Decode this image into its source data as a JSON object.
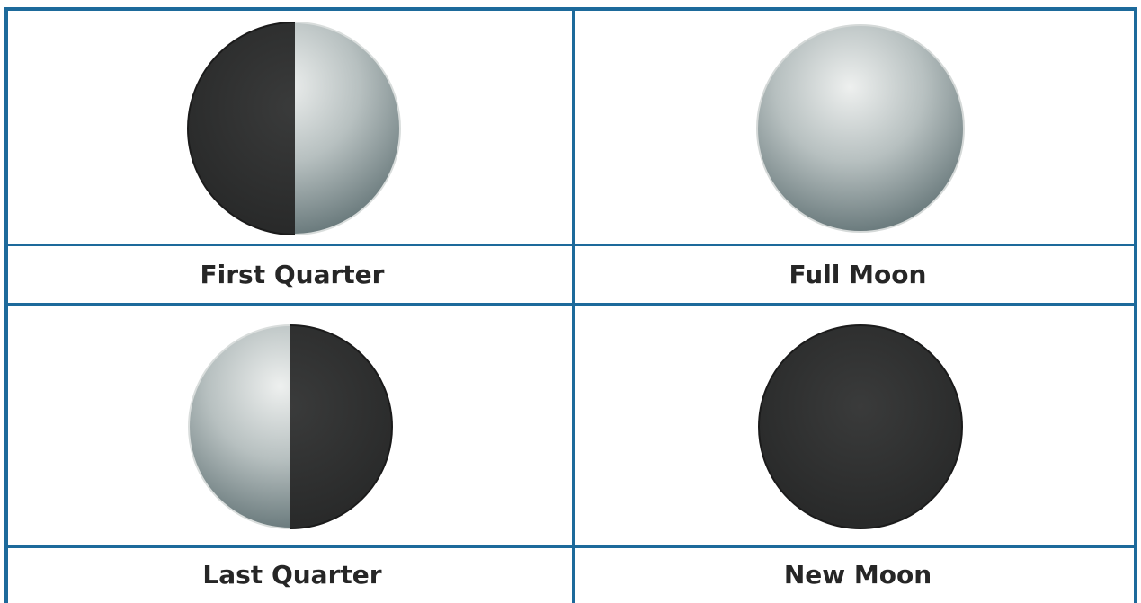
{
  "table": {
    "rows": [
      [
        "First Quarter",
        "Full Moon"
      ],
      [
        "Last Quarter",
        "New Moon"
      ]
    ]
  }
}
